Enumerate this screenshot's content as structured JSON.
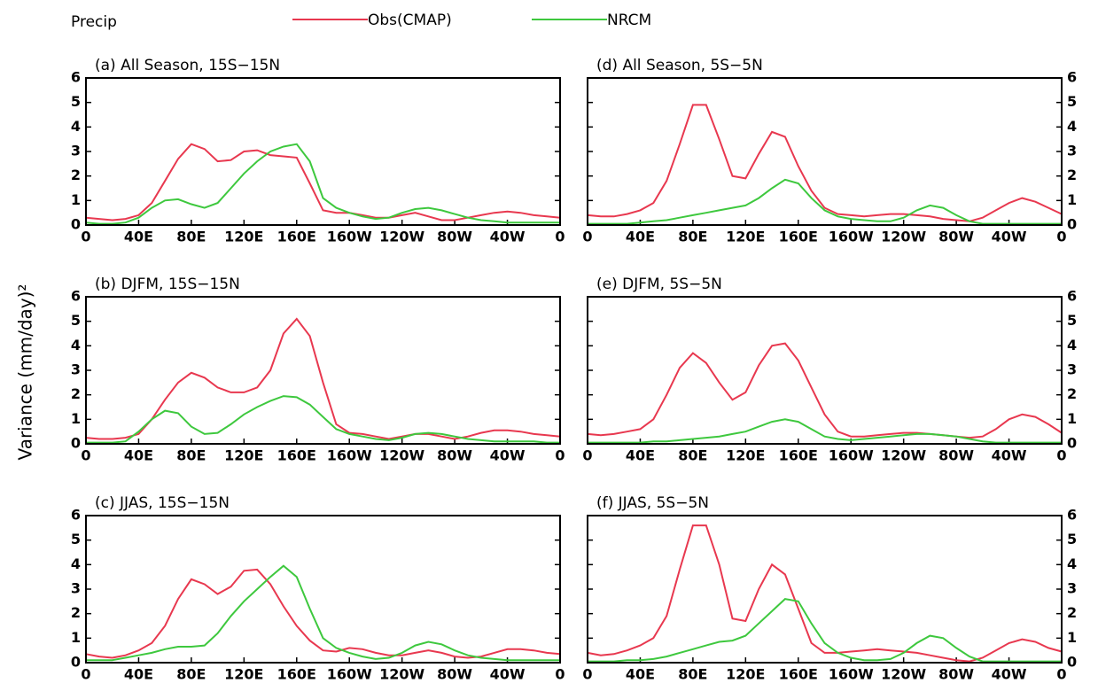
{
  "title": "Precip",
  "ylabel": "Variance (mm/day)²",
  "legend": [
    {
      "name": "Obs(CMAP)",
      "color": "#e8384f"
    },
    {
      "name": "NRCM",
      "color": "#3ec83e"
    }
  ],
  "chart_data": [
    {
      "type": "line",
      "title": "(a) All Season, 15S−15N",
      "yaxis_side": "left",
      "x": [
        0,
        10,
        20,
        30,
        40,
        50,
        60,
        70,
        80,
        90,
        100,
        110,
        120,
        130,
        140,
        150,
        160,
        170,
        180,
        190,
        200,
        210,
        220,
        230,
        240,
        250,
        260,
        270,
        280,
        290,
        300,
        310,
        320,
        330,
        340,
        350,
        360
      ],
      "xlim": [
        0,
        360
      ],
      "xticks": [
        0,
        {
          "value": 40,
          "label": "40E"
        },
        {
          "value": 80,
          "label": "80E"
        },
        {
          "value": 120,
          "label": "120E"
        },
        {
          "value": 160,
          "label": "160E"
        },
        {
          "value": 200,
          "label": "160W"
        },
        {
          "value": 240,
          "label": "120W"
        },
        {
          "value": 280,
          "label": "80W"
        },
        {
          "value": 320,
          "label": "40W"
        },
        {
          "value": 360,
          "label": "0"
        }
      ],
      "ylim": [
        0,
        6
      ],
      "yticks": [
        0,
        1,
        2,
        3,
        4,
        5,
        6
      ],
      "series": [
        {
          "values": [
            0.3,
            0.25,
            0.2,
            0.25,
            0.4,
            0.9,
            1.8,
            2.7,
            3.3,
            3.1,
            2.6,
            2.65,
            3.0,
            3.05,
            2.85,
            2.8,
            2.75,
            1.7,
            0.6,
            0.5,
            0.5,
            0.4,
            0.3,
            0.3,
            0.4,
            0.5,
            0.35,
            0.2,
            0.2,
            0.3,
            0.4,
            0.5,
            0.55,
            0.5,
            0.4,
            0.35,
            0.3
          ]
        },
        {
          "values": [
            0.1,
            0.05,
            0.05,
            0.1,
            0.3,
            0.7,
            1.0,
            1.05,
            0.85,
            0.7,
            0.9,
            1.5,
            2.1,
            2.6,
            3.0,
            3.2,
            3.3,
            2.6,
            1.1,
            0.7,
            0.5,
            0.35,
            0.25,
            0.3,
            0.5,
            0.65,
            0.7,
            0.6,
            0.45,
            0.3,
            0.2,
            0.15,
            0.1,
            0.1,
            0.1,
            0.1,
            0.1
          ]
        }
      ]
    },
    {
      "type": "line",
      "title": "(b) DJFM, 15S−15N",
      "yaxis_side": "left",
      "x": [
        0,
        10,
        20,
        30,
        40,
        50,
        60,
        70,
        80,
        90,
        100,
        110,
        120,
        130,
        140,
        150,
        160,
        170,
        180,
        190,
        200,
        210,
        220,
        230,
        240,
        250,
        260,
        270,
        280,
        290,
        300,
        310,
        320,
        330,
        340,
        350,
        360
      ],
      "xlim": [
        0,
        360
      ],
      "xticks": [
        0,
        {
          "value": 40,
          "label": "40E"
        },
        {
          "value": 80,
          "label": "80E"
        },
        {
          "value": 120,
          "label": "120E"
        },
        {
          "value": 160,
          "label": "160E"
        },
        {
          "value": 200,
          "label": "160W"
        },
        {
          "value": 240,
          "label": "120W"
        },
        {
          "value": 280,
          "label": "80W"
        },
        {
          "value": 320,
          "label": "40W"
        },
        {
          "value": 360,
          "label": "0"
        }
      ],
      "ylim": [
        0,
        6
      ],
      "yticks": [
        0,
        1,
        2,
        3,
        4,
        5,
        6
      ],
      "series": [
        {
          "values": [
            0.25,
            0.2,
            0.2,
            0.25,
            0.4,
            1.0,
            1.8,
            2.5,
            2.9,
            2.7,
            2.3,
            2.1,
            2.1,
            2.3,
            3.0,
            4.5,
            5.1,
            4.4,
            2.5,
            0.8,
            0.45,
            0.4,
            0.3,
            0.2,
            0.3,
            0.4,
            0.4,
            0.3,
            0.2,
            0.3,
            0.45,
            0.55,
            0.55,
            0.5,
            0.4,
            0.35,
            0.3
          ]
        },
        {
          "values": [
            0.05,
            0.05,
            0.05,
            0.1,
            0.5,
            1.0,
            1.35,
            1.25,
            0.7,
            0.4,
            0.45,
            0.8,
            1.2,
            1.5,
            1.75,
            1.95,
            1.9,
            1.6,
            1.1,
            0.6,
            0.4,
            0.3,
            0.2,
            0.15,
            0.25,
            0.4,
            0.45,
            0.4,
            0.3,
            0.2,
            0.15,
            0.1,
            0.1,
            0.1,
            0.1,
            0.05,
            0.05
          ]
        }
      ]
    },
    {
      "type": "line",
      "title": "(c) JJAS, 15S−15N",
      "yaxis_side": "left",
      "x": [
        0,
        10,
        20,
        30,
        40,
        50,
        60,
        70,
        80,
        90,
        100,
        110,
        120,
        130,
        140,
        150,
        160,
        170,
        180,
        190,
        200,
        210,
        220,
        230,
        240,
        250,
        260,
        270,
        280,
        290,
        300,
        310,
        320,
        330,
        340,
        350,
        360
      ],
      "xlim": [
        0,
        360
      ],
      "xticks": [
        0,
        {
          "value": 40,
          "label": "40E"
        },
        {
          "value": 80,
          "label": "80E"
        },
        {
          "value": 120,
          "label": "120E"
        },
        {
          "value": 160,
          "label": "160E"
        },
        {
          "value": 200,
          "label": "160W"
        },
        {
          "value": 240,
          "label": "120W"
        },
        {
          "value": 280,
          "label": "80W"
        },
        {
          "value": 320,
          "label": "40W"
        },
        {
          "value": 360,
          "label": "0"
        }
      ],
      "ylim": [
        0,
        6
      ],
      "yticks": [
        0,
        1,
        2,
        3,
        4,
        5,
        6
      ],
      "series": [
        {
          "values": [
            0.35,
            0.25,
            0.2,
            0.3,
            0.5,
            0.8,
            1.5,
            2.6,
            3.4,
            3.2,
            2.8,
            3.1,
            3.75,
            3.8,
            3.2,
            2.3,
            1.5,
            0.9,
            0.5,
            0.45,
            0.6,
            0.55,
            0.4,
            0.3,
            0.3,
            0.4,
            0.5,
            0.4,
            0.25,
            0.2,
            0.25,
            0.4,
            0.55,
            0.55,
            0.5,
            0.4,
            0.35
          ]
        },
        {
          "values": [
            0.1,
            0.1,
            0.1,
            0.2,
            0.3,
            0.4,
            0.55,
            0.65,
            0.65,
            0.7,
            1.2,
            1.9,
            2.5,
            3.0,
            3.5,
            3.95,
            3.5,
            2.2,
            1.0,
            0.6,
            0.4,
            0.25,
            0.15,
            0.2,
            0.4,
            0.7,
            0.85,
            0.75,
            0.5,
            0.3,
            0.2,
            0.15,
            0.1,
            0.1,
            0.1,
            0.1,
            0.1
          ]
        }
      ]
    },
    {
      "type": "line",
      "title": "(d) All Season, 5S−5N",
      "yaxis_side": "right",
      "x": [
        0,
        10,
        20,
        30,
        40,
        50,
        60,
        70,
        80,
        90,
        100,
        110,
        120,
        130,
        140,
        150,
        160,
        170,
        180,
        190,
        200,
        210,
        220,
        230,
        240,
        250,
        260,
        270,
        280,
        290,
        300,
        310,
        320,
        330,
        340,
        350,
        360
      ],
      "xlim": [
        0,
        360
      ],
      "xticks": [
        0,
        {
          "value": 40,
          "label": "40E"
        },
        {
          "value": 80,
          "label": "80E"
        },
        {
          "value": 120,
          "label": "120E"
        },
        {
          "value": 160,
          "label": "160E"
        },
        {
          "value": 200,
          "label": "160W"
        },
        {
          "value": 240,
          "label": "120W"
        },
        {
          "value": 280,
          "label": "80W"
        },
        {
          "value": 320,
          "label": "40W"
        },
        {
          "value": 360,
          "label": "0"
        }
      ],
      "ylim": [
        0,
        6
      ],
      "yticks": [
        0,
        1,
        2,
        3,
        4,
        5,
        6
      ],
      "series": [
        {
          "values": [
            0.4,
            0.35,
            0.35,
            0.45,
            0.6,
            0.9,
            1.8,
            3.3,
            4.9,
            4.9,
            3.5,
            2.0,
            1.9,
            2.9,
            3.8,
            3.6,
            2.4,
            1.4,
            0.7,
            0.45,
            0.4,
            0.35,
            0.4,
            0.45,
            0.45,
            0.4,
            0.35,
            0.25,
            0.2,
            0.15,
            0.3,
            0.6,
            0.9,
            1.1,
            0.95,
            0.7,
            0.45
          ]
        },
        {
          "values": [
            0.05,
            0.05,
            0.05,
            0.05,
            0.1,
            0.15,
            0.2,
            0.3,
            0.4,
            0.5,
            0.6,
            0.7,
            0.8,
            1.1,
            1.5,
            1.85,
            1.7,
            1.1,
            0.6,
            0.35,
            0.25,
            0.2,
            0.15,
            0.15,
            0.3,
            0.6,
            0.8,
            0.7,
            0.4,
            0.15,
            0.05,
            0.05,
            0.05,
            0.05,
            0.05,
            0.05,
            0.05
          ]
        }
      ]
    },
    {
      "type": "line",
      "title": "(e) DJFM, 5S−5N",
      "yaxis_side": "right",
      "x": [
        0,
        10,
        20,
        30,
        40,
        50,
        60,
        70,
        80,
        90,
        100,
        110,
        120,
        130,
        140,
        150,
        160,
        170,
        180,
        190,
        200,
        210,
        220,
        230,
        240,
        250,
        260,
        270,
        280,
        290,
        300,
        310,
        320,
        330,
        340,
        350,
        360
      ],
      "xlim": [
        0,
        360
      ],
      "xticks": [
        0,
        {
          "value": 40,
          "label": "40E"
        },
        {
          "value": 80,
          "label": "80E"
        },
        {
          "value": 120,
          "label": "120E"
        },
        {
          "value": 160,
          "label": "160E"
        },
        {
          "value": 200,
          "label": "160W"
        },
        {
          "value": 240,
          "label": "120W"
        },
        {
          "value": 280,
          "label": "80W"
        },
        {
          "value": 320,
          "label": "40W"
        },
        {
          "value": 360,
          "label": "0"
        }
      ],
      "ylim": [
        0,
        6
      ],
      "yticks": [
        0,
        1,
        2,
        3,
        4,
        5,
        6
      ],
      "series": [
        {
          "values": [
            0.4,
            0.35,
            0.4,
            0.5,
            0.6,
            1.0,
            2.0,
            3.1,
            3.7,
            3.3,
            2.5,
            1.8,
            2.1,
            3.2,
            4.0,
            4.1,
            3.4,
            2.3,
            1.2,
            0.5,
            0.3,
            0.3,
            0.35,
            0.4,
            0.45,
            0.45,
            0.4,
            0.35,
            0.3,
            0.25,
            0.3,
            0.6,
            1.0,
            1.2,
            1.1,
            0.8,
            0.45
          ]
        },
        {
          "values": [
            0.05,
            0.05,
            0.05,
            0.05,
            0.05,
            0.1,
            0.1,
            0.15,
            0.2,
            0.25,
            0.3,
            0.4,
            0.5,
            0.7,
            0.9,
            1.0,
            0.9,
            0.6,
            0.3,
            0.2,
            0.15,
            0.2,
            0.25,
            0.3,
            0.35,
            0.4,
            0.4,
            0.35,
            0.3,
            0.2,
            0.1,
            0.05,
            0.05,
            0.05,
            0.05,
            0.05,
            0.05
          ]
        }
      ]
    },
    {
      "type": "line",
      "title": "(f) JJAS, 5S−5N",
      "yaxis_side": "right",
      "x": [
        0,
        10,
        20,
        30,
        40,
        50,
        60,
        70,
        80,
        90,
        100,
        110,
        120,
        130,
        140,
        150,
        160,
        170,
        180,
        190,
        200,
        210,
        220,
        230,
        240,
        250,
        260,
        270,
        280,
        290,
        300,
        310,
        320,
        330,
        340,
        350,
        360
      ],
      "xlim": [
        0,
        360
      ],
      "xticks": [
        0,
        {
          "value": 40,
          "label": "40E"
        },
        {
          "value": 80,
          "label": "80E"
        },
        {
          "value": 120,
          "label": "120E"
        },
        {
          "value": 160,
          "label": "160E"
        },
        {
          "value": 200,
          "label": "160W"
        },
        {
          "value": 240,
          "label": "120W"
        },
        {
          "value": 280,
          "label": "80W"
        },
        {
          "value": 320,
          "label": "40W"
        },
        {
          "value": 360,
          "label": "0"
        }
      ],
      "ylim": [
        0,
        6
      ],
      "yticks": [
        0,
        1,
        2,
        3,
        4,
        5,
        6
      ],
      "series": [
        {
          "values": [
            0.4,
            0.3,
            0.35,
            0.5,
            0.7,
            1.0,
            1.9,
            3.8,
            5.6,
            5.6,
            4.0,
            1.8,
            1.7,
            3.0,
            4.0,
            3.6,
            2.2,
            0.8,
            0.4,
            0.4,
            0.45,
            0.5,
            0.55,
            0.5,
            0.45,
            0.4,
            0.3,
            0.2,
            0.1,
            0.05,
            0.2,
            0.5,
            0.8,
            0.95,
            0.85,
            0.6,
            0.45
          ]
        },
        {
          "values": [
            0.05,
            0.05,
            0.05,
            0.1,
            0.1,
            0.15,
            0.25,
            0.4,
            0.55,
            0.7,
            0.85,
            0.9,
            1.1,
            1.6,
            2.1,
            2.6,
            2.5,
            1.6,
            0.8,
            0.4,
            0.2,
            0.1,
            0.1,
            0.15,
            0.4,
            0.8,
            1.1,
            1.0,
            0.6,
            0.25,
            0.05,
            0.05,
            0.05,
            0.05,
            0.05,
            0.05,
            0.05
          ]
        }
      ]
    }
  ]
}
